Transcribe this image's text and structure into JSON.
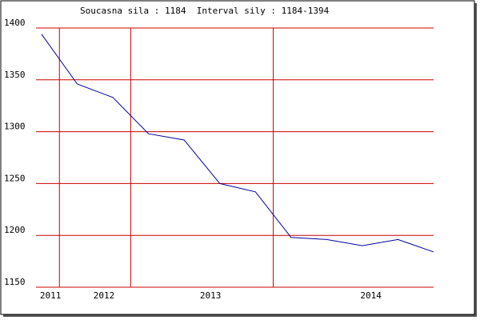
{
  "chart_data": {
    "type": "line",
    "title": "Soucasna sila : 1184  Interval sily : 1184-1394",
    "x": [
      0,
      1,
      2,
      3,
      4,
      5,
      6,
      7,
      8,
      9,
      10,
      11
    ],
    "series": [
      {
        "color": "#0000a0",
        "values": [
          1394,
          1346,
          1333,
          1298,
          1292,
          1250,
          1242,
          1198,
          1196,
          1190,
          1196,
          1184
        ]
      }
    ],
    "xlim": [
      0,
      11
    ],
    "xticks": [
      {
        "value": 0.25,
        "label": "2011"
      },
      {
        "value": 1.75,
        "label": "2012"
      },
      {
        "value": 4.74,
        "label": "2013"
      },
      {
        "value": 9.24,
        "label": "2014"
      }
    ],
    "x_gridlines": [
      0.5,
      2.5,
      6.5
    ],
    "ylim": [
      1150,
      1400
    ],
    "yticks": [
      1150,
      1200,
      1250,
      1300,
      1350,
      1400
    ],
    "grid": true,
    "grid_color": "#cc0000"
  }
}
